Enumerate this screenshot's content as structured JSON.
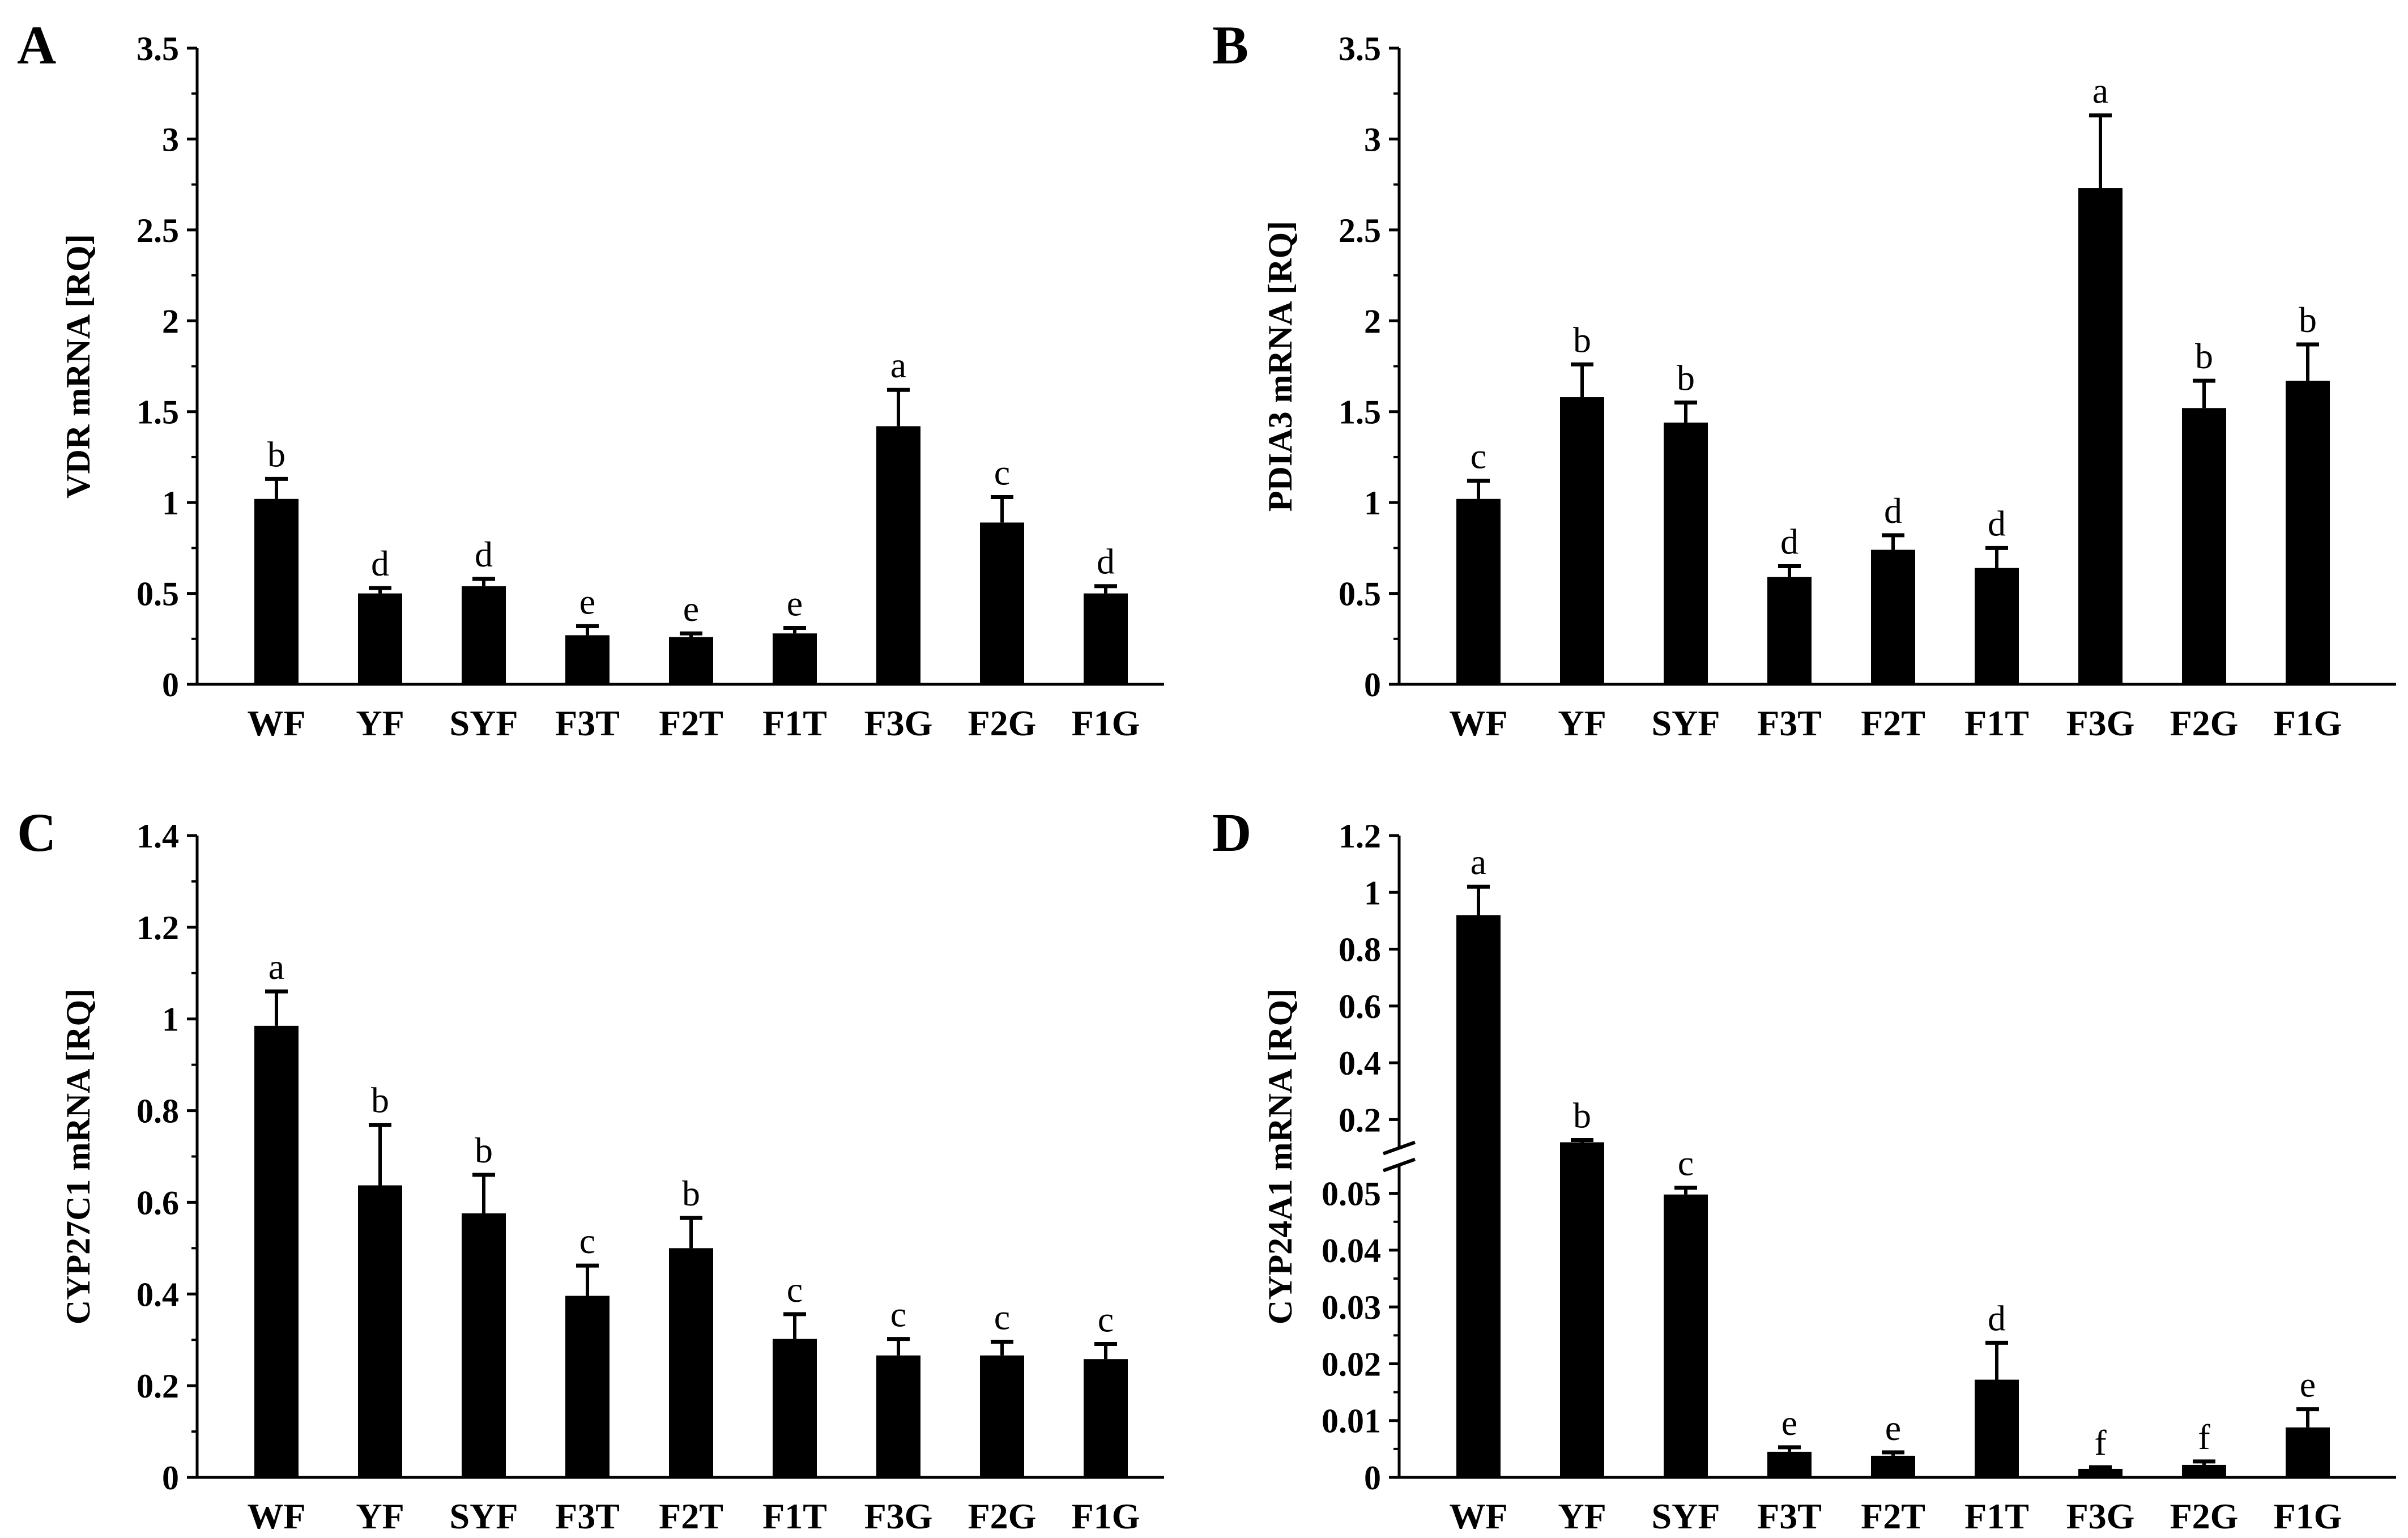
{
  "chart_data": [
    {
      "panel": "A",
      "type": "bar",
      "ylabel": "VDR mRNA [RQ]",
      "ylim": [
        0,
        3.5
      ],
      "yticks": [
        "0",
        "0.5",
        "1",
        "1.5",
        "2",
        "2.5",
        "3",
        "3.5"
      ],
      "categories": [
        "WF",
        "YF",
        "SYF",
        "F3T",
        "F2T",
        "F1T",
        "F3G",
        "F2G",
        "F1G"
      ],
      "values": [
        1.02,
        0.5,
        0.54,
        0.27,
        0.26,
        0.28,
        1.42,
        0.89,
        0.5
      ],
      "errors": [
        0.11,
        0.03,
        0.04,
        0.05,
        0.02,
        0.03,
        0.2,
        0.14,
        0.04
      ],
      "significance": [
        "b",
        "d",
        "d",
        "e",
        "e",
        "e",
        "a",
        "c",
        "d"
      ]
    },
    {
      "panel": "B",
      "type": "bar",
      "ylabel": "PDIA3 mRNA [RQ]",
      "ylim": [
        0,
        3.5
      ],
      "yticks": [
        "0",
        "0.5",
        "1",
        "1.5",
        "2",
        "2.5",
        "3",
        "3.5"
      ],
      "categories": [
        "WF",
        "YF",
        "SYF",
        "F3T",
        "F2T",
        "F1T",
        "F3G",
        "F2G",
        "F1G"
      ],
      "values": [
        1.02,
        1.58,
        1.44,
        0.59,
        0.74,
        0.64,
        2.73,
        1.52,
        1.67
      ],
      "errors": [
        0.1,
        0.18,
        0.11,
        0.06,
        0.08,
        0.11,
        0.4,
        0.15,
        0.2
      ],
      "significance": [
        "c",
        "b",
        "b",
        "d",
        "d",
        "d",
        "a",
        "b",
        "b"
      ]
    },
    {
      "panel": "C",
      "type": "bar",
      "ylabel": "CYP27C1 mRNA [RQ]",
      "ylim": [
        0,
        1.4
      ],
      "yticks": [
        "0",
        "0.2",
        "0.4",
        "0.6",
        "0.8",
        "1",
        "1.2",
        "1.4"
      ],
      "categories": [
        "WF",
        "YF",
        "SYF",
        "F3T",
        "F2T",
        "F1T",
        "F3G",
        "F2G",
        "F1G"
      ],
      "values": [
        0.985,
        0.637,
        0.576,
        0.396,
        0.5,
        0.302,
        0.266,
        0.266,
        0.258
      ],
      "errors": [
        0.075,
        0.132,
        0.084,
        0.066,
        0.066,
        0.054,
        0.036,
        0.03,
        0.033
      ],
      "significance": [
        "a",
        "b",
        "b",
        "c",
        "b",
        "c",
        "c",
        "c",
        "c"
      ]
    },
    {
      "panel": "D",
      "type": "bar",
      "ylabel": "CYP24A1 mRNA [RQ]",
      "broken_axis": {
        "lower_range": [
          0,
          0.055
        ],
        "upper_range": [
          0.1,
          1.2
        ]
      },
      "yticks_lower": [
        "0",
        "0.01",
        "0.02",
        "0.03",
        "0.04",
        "0.05"
      ],
      "yticks_upper": [
        "0.2",
        "0.4",
        "0.6",
        "0.8",
        "1",
        "1.2"
      ],
      "categories": [
        "WF",
        "YF",
        "SYF",
        "F3T",
        "F2T",
        "F1T",
        "F3G",
        "F2G",
        "F1G"
      ],
      "values": [
        0.92,
        0.12,
        0.0498,
        0.0045,
        0.0038,
        0.0172,
        0.0015,
        0.0022,
        0.0088
      ],
      "errors": [
        0.1,
        0.008,
        0.0012,
        0.0008,
        0.0006,
        0.0065,
        0.0003,
        0.0006,
        0.0032
      ],
      "significance": [
        "a",
        "b",
        "c",
        "e",
        "e",
        "d",
        "f",
        "f",
        "e"
      ]
    }
  ]
}
